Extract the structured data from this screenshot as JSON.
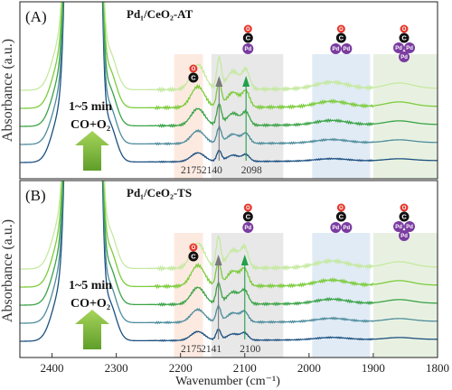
{
  "chart_data": {
    "type": "line",
    "xlabel": "Wavenumber (cm⁻¹)",
    "ylabel": "Absorbance (a.u.)",
    "xlim": [
      2450,
      1800
    ],
    "x_reversed": true,
    "xticks": [
      2400,
      2300,
      2200,
      2100,
      2000,
      1900,
      1800
    ],
    "panels": [
      {
        "label": "(A)",
        "title": "Pd₁/CeO₂-AT",
        "annotation_time": "1~5 min",
        "annotation_gas": "CO+O₂",
        "peak_labels": [
          "2175",
          "2140",
          "2098"
        ],
        "peaks": [
          2175,
          2140,
          2098
        ],
        "bands": [
          {
            "from": 2210,
            "to": 2165,
            "color": "#fbe6dc"
          },
          {
            "from": 2152,
            "to": 2040,
            "color": "#e4e4e4"
          },
          {
            "from": 1995,
            "to": 1905,
            "color": "#dce8f3"
          },
          {
            "from": 1900,
            "to": 1800,
            "color": "#e4eedc"
          }
        ],
        "species_icons": [
          {
            "wavenumber": 2180,
            "type": "free-CO"
          },
          {
            "wavenumber": 2095,
            "type": "linear-CO-on-Pd"
          },
          {
            "wavenumber": 1950,
            "type": "bridged-CO-on-Pd2"
          },
          {
            "wavenumber": 1852,
            "type": "hollow-CO-on-Pd3"
          }
        ],
        "series": [
          {
            "color": "#1b4f80",
            "offset": 0.0
          },
          {
            "color": "#4d8c9c",
            "offset": 0.2
          },
          {
            "color": "#3aa346",
            "offset": 0.4
          },
          {
            "color": "#7ccc3c",
            "offset": 0.6
          },
          {
            "color": "#c5e9a0",
            "offset": 0.8
          }
        ]
      },
      {
        "label": "(B)",
        "title": "Pd₁/CeO₂-TS",
        "annotation_time": "1~5 min",
        "annotation_gas": "CO+O₂",
        "peak_labels": [
          "2175",
          "2141",
          "2100"
        ],
        "peaks": [
          2175,
          2141,
          2100
        ],
        "bands": [
          {
            "from": 2210,
            "to": 2165,
            "color": "#fbe6dc"
          },
          {
            "from": 2152,
            "to": 2040,
            "color": "#e4e4e4"
          },
          {
            "from": 1995,
            "to": 1905,
            "color": "#dce8f3"
          },
          {
            "from": 1900,
            "to": 1800,
            "color": "#e4eedc"
          }
        ],
        "species_icons": [
          {
            "wavenumber": 2180,
            "type": "free-CO"
          },
          {
            "wavenumber": 2095,
            "type": "linear-CO-on-Pd"
          },
          {
            "wavenumber": 1950,
            "type": "bridged-CO-on-Pd2"
          },
          {
            "wavenumber": 1852,
            "type": "hollow-CO-on-Pd3"
          }
        ],
        "series": [
          {
            "color": "#1b4f80",
            "offset": 0.0
          },
          {
            "color": "#4d8c9c",
            "offset": 0.2
          },
          {
            "color": "#3aa346",
            "offset": 0.4
          },
          {
            "color": "#7ccc3c",
            "offset": 0.6
          },
          {
            "color": "#c5e9a0",
            "offset": 0.8
          }
        ]
      }
    ]
  },
  "atom_labels": {
    "carbon": "C",
    "oxygen": "O",
    "palladium": "Pd"
  },
  "colors": {
    "arrow_gray": "#7a7a7a",
    "arrow_green": "#22a04a",
    "big_arrow_top": "#a6d45a",
    "big_arrow_bottom": "#5f9e2a",
    "oxygen": "#e53a2e",
    "carbon": "#111111",
    "palladium": "#7a3ca0"
  }
}
